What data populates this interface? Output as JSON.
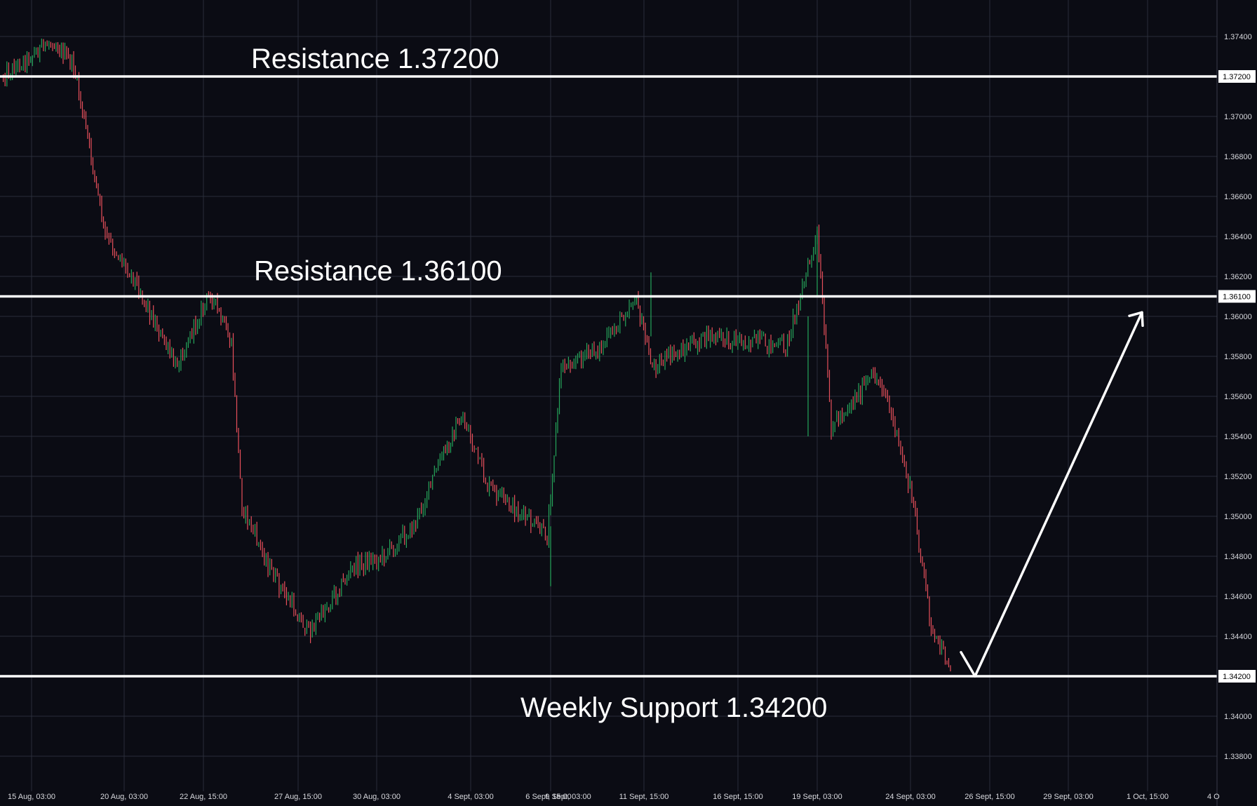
{
  "chart_data": {
    "type": "candlestick",
    "instrument": "",
    "y_axis": {
      "ticks": [
        "1.33800",
        "1.34000",
        "1.34200",
        "1.34400",
        "1.34600",
        "1.34800",
        "1.35000",
        "1.35200",
        "1.35400",
        "1.35600",
        "1.35800",
        "1.36000",
        "1.36100",
        "1.36200",
        "1.36400",
        "1.36600",
        "1.36800",
        "1.37000",
        "1.37200",
        "1.37400"
      ],
      "range": [
        1.3368,
        1.3746
      ],
      "position": "right"
    },
    "x_axis": {
      "ticks": [
        "15 Aug, 03:00",
        "20 Aug, 03:00",
        "22 Aug, 15:00",
        "27 Aug, 15:00",
        "30 Aug, 03:00",
        "4 Sept, 03:00",
        "6 Sept, 15:00",
        "9 Sept, 03:00",
        "11 Sept, 15:00",
        "16 Sept, 15:00",
        "19 Sept, 03:00",
        "24 Sept, 03:00",
        "26 Sept, 15:00",
        "29 Sept, 03:00",
        "1 Oct, 15:00",
        "4 O"
      ]
    },
    "levels": [
      {
        "label": "Resistance 1.37200",
        "value": 1.372,
        "tag": "1.37200"
      },
      {
        "label": "Resistance 1.36100",
        "value": 1.361,
        "tag": "1.36100"
      },
      {
        "label": "Weekly Support 1.34200",
        "value": 1.342,
        "tag": "1.34200"
      }
    ],
    "price_path": [
      [
        "15 Aug, 03:00",
        1.372
      ],
      [
        "16 Aug",
        1.3738
      ],
      [
        "17 Aug",
        1.3725
      ],
      [
        "19 Aug",
        1.368
      ],
      [
        "20 Aug, 03:00",
        1.364
      ],
      [
        "21 Aug",
        1.362
      ],
      [
        "22 Aug",
        1.3575
      ],
      [
        "22 Aug, 15:00",
        1.3612
      ],
      [
        "23 Aug",
        1.3585
      ],
      [
        "26 Aug",
        1.3505
      ],
      [
        "27 Aug, 15:00",
        1.347
      ],
      [
        "28 Aug",
        1.3442
      ],
      [
        "29 Aug",
        1.3475
      ],
      [
        "30 Aug, 03:00",
        1.348
      ],
      [
        "1 Sept",
        1.3495
      ],
      [
        "3 Sept",
        1.353
      ],
      [
        "4 Sept, 03:00",
        1.355
      ],
      [
        "5 Sept",
        1.3515
      ],
      [
        "6 Sept, 15:00",
        1.349
      ],
      [
        "7 Sept",
        1.3575
      ],
      [
        "10 Sept",
        1.3585
      ],
      [
        "11 Sept, 15:00",
        1.361
      ],
      [
        "12 Sept",
        1.3575
      ],
      [
        "16 Sept, 15:00",
        1.359
      ],
      [
        "18 Sept",
        1.3585
      ],
      [
        "19 Sept, 03:00",
        1.364
      ],
      [
        "20 Sept",
        1.3545
      ],
      [
        "21 Sept",
        1.357
      ],
      [
        "23 Sept",
        1.3565
      ],
      [
        "24 Sept, 03:00",
        1.351
      ],
      [
        "25 Sept",
        1.344
      ],
      [
        "25 Sept, 12:00",
        1.3425
      ]
    ],
    "projection": [
      [
        "25 Sept, 12:00",
        1.3432
      ],
      [
        "26 Sept, 03:00",
        1.342
      ],
      [
        "1 Oct, 15:00",
        1.3602
      ]
    ],
    "colors": {
      "background": "#0b0c14",
      "grid": "#2a2d3a",
      "up_candle": "#26a65b",
      "down_candle": "#e8505b",
      "level_line": "#ffffff"
    },
    "grid": true
  }
}
